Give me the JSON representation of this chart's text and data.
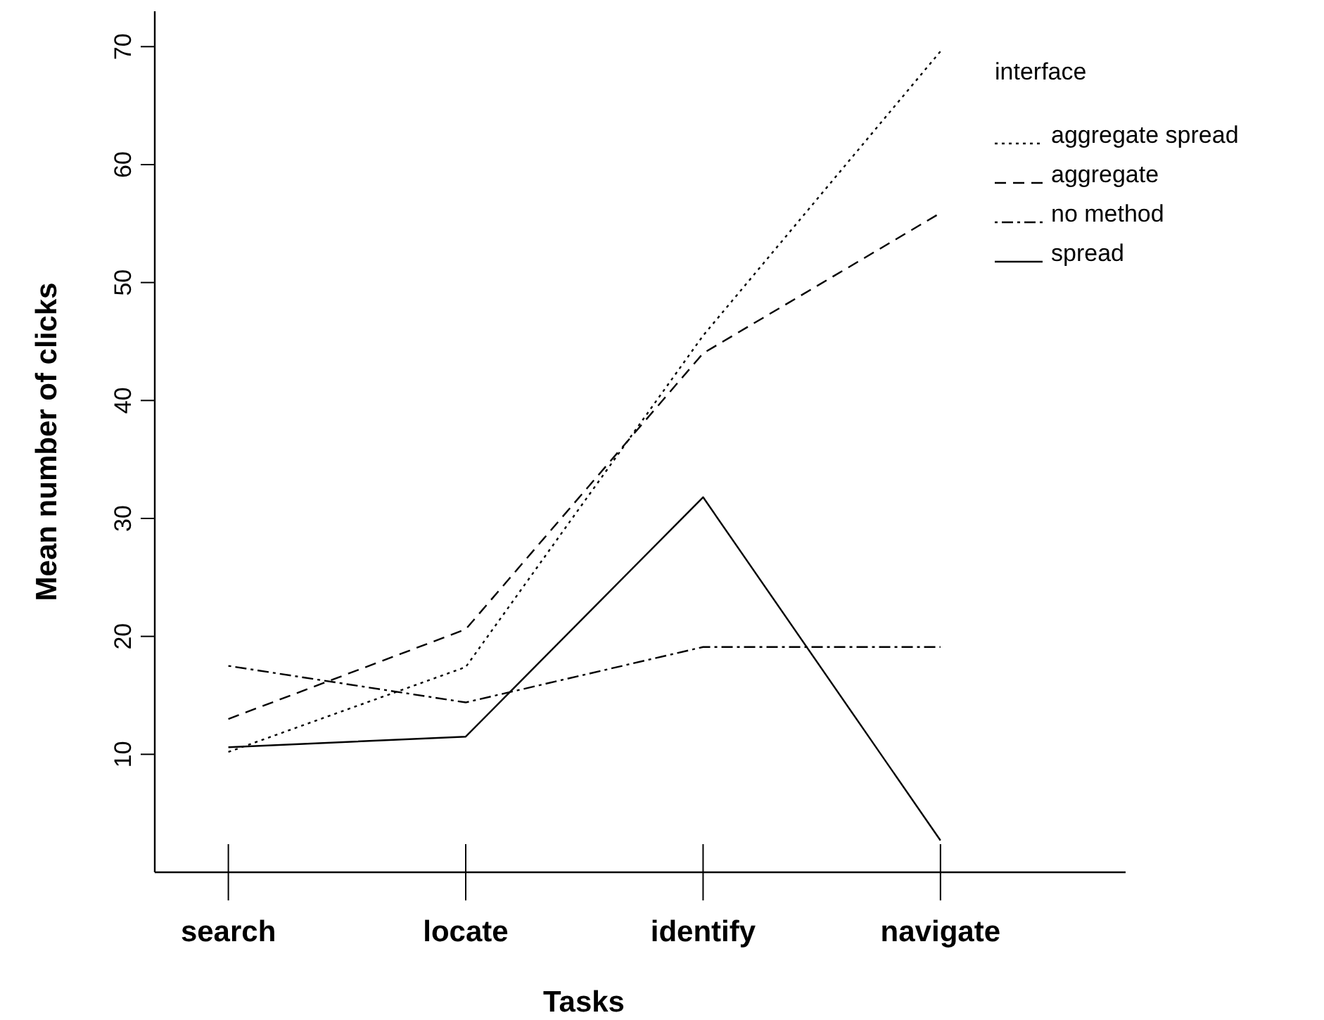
{
  "chart_data": {
    "type": "line",
    "xlabel": "Tasks",
    "ylabel": "Mean  number of clicks",
    "legend_title": "interface",
    "legend": "top right",
    "grid": false,
    "marker": "none",
    "categories": [
      "search",
      "locate",
      "identify",
      "navigate"
    ],
    "ylim": [
      0,
      73
    ],
    "yticks": [
      10,
      20,
      30,
      40,
      50,
      60,
      70
    ],
    "series": [
      {
        "name": "aggregate spread",
        "color": "#000000",
        "line_style": "dotted",
        "values": [
          10.2,
          17.4,
          45.5,
          69.6
        ]
      },
      {
        "name": "aggregate",
        "color": "#000000",
        "line_style": "dashed",
        "values": [
          13.0,
          20.6,
          44.0,
          55.9
        ]
      },
      {
        "name": "no method",
        "color": "#000000",
        "line_style": "dashdot",
        "values": [
          17.5,
          14.4,
          19.1,
          19.1
        ]
      },
      {
        "name": "spread",
        "color": "#000000",
        "line_style": "solid",
        "values": [
          10.6,
          11.5,
          31.8,
          2.7
        ]
      }
    ]
  }
}
